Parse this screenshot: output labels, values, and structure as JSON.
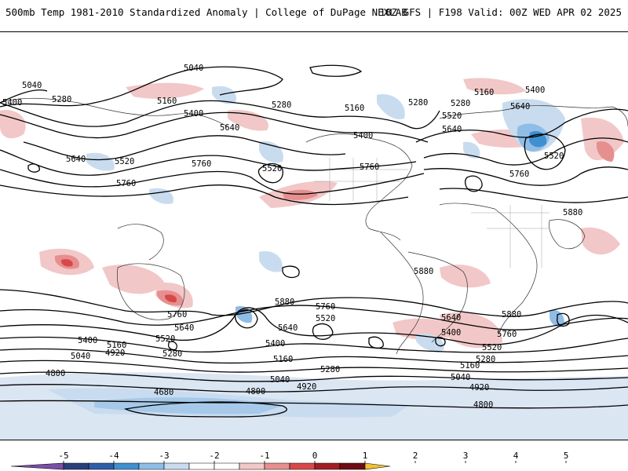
{
  "header": {
    "title": "500mb Temp 1981-2010 Standardized Anomaly | College of DuPage NEXLAB",
    "run_info": "18Z GFS | F198 Valid: 00Z WED APR 02 2025"
  },
  "map": {
    "contour_labels": [
      "5040",
      "5280",
      "5400",
      "5520",
      "5640",
      "5760",
      "5880",
      "4920",
      "4800",
      "4680",
      "5160"
    ]
  },
  "colorbar": {
    "ticks": [
      "-5",
      "-4",
      "-3",
      "-2",
      "-1",
      "0",
      "1",
      "2",
      "3",
      "4",
      "5"
    ],
    "colors": [
      "#7b4fa8",
      "#2a3f7a",
      "#2e5ea8",
      "#3f8fd1",
      "#8fbde6",
      "#c9dcef",
      "#ffffff",
      "#ffffff",
      "#f2c7c7",
      "#e68f8f",
      "#d94848",
      "#a31d24",
      "#6e0c14",
      "#f1c232"
    ]
  }
}
